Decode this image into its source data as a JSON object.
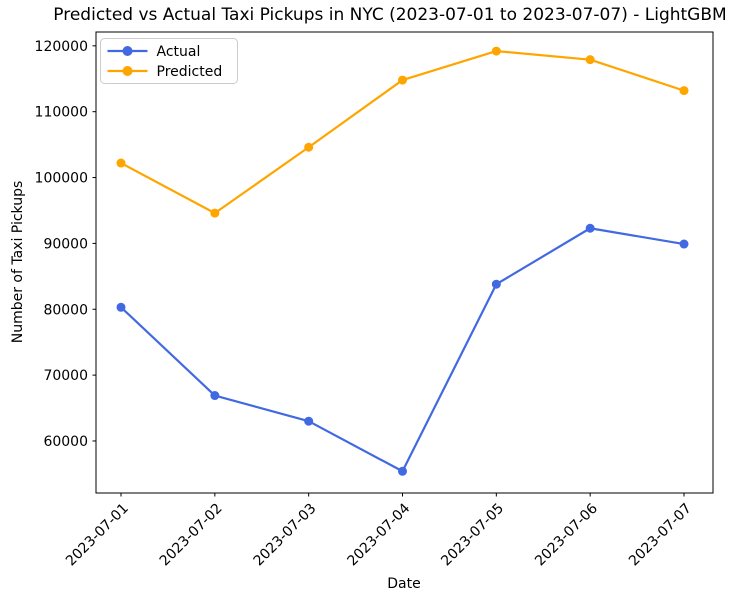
{
  "chart_data": {
    "type": "line",
    "title": "Predicted vs Actual Taxi Pickups in NYC (2023-07-01 to 2023-07-07) - LightGBM",
    "xlabel": "Date",
    "ylabel": "Number of Taxi Pickups",
    "categories": [
      "2023-07-01",
      "2023-07-02",
      "2023-07-03",
      "2023-07-04",
      "2023-07-05",
      "2023-07-06",
      "2023-07-07"
    ],
    "series": [
      {
        "name": "Actual",
        "color": "#4169E1",
        "marker": "circle",
        "values": [
          80300,
          66900,
          63000,
          55400,
          83800,
          92300,
          89900
        ]
      },
      {
        "name": "Predicted",
        "color": "#FFA500",
        "marker": "circle",
        "values": [
          102200,
          94600,
          104600,
          114800,
          119200,
          117900,
          113200
        ]
      }
    ],
    "ylim": [
      52100,
      122100
    ],
    "yticks": [
      60000,
      70000,
      80000,
      90000,
      100000,
      110000,
      120000
    ],
    "ytick_labels": [
      "60000",
      "70000",
      "80000",
      "90000",
      "100000",
      "110000",
      "120000"
    ],
    "xtick_rotation": 45,
    "grid": false,
    "legend_position": "upper left",
    "axis_color": "#000000",
    "legend_border_color": "#cccccc"
  }
}
